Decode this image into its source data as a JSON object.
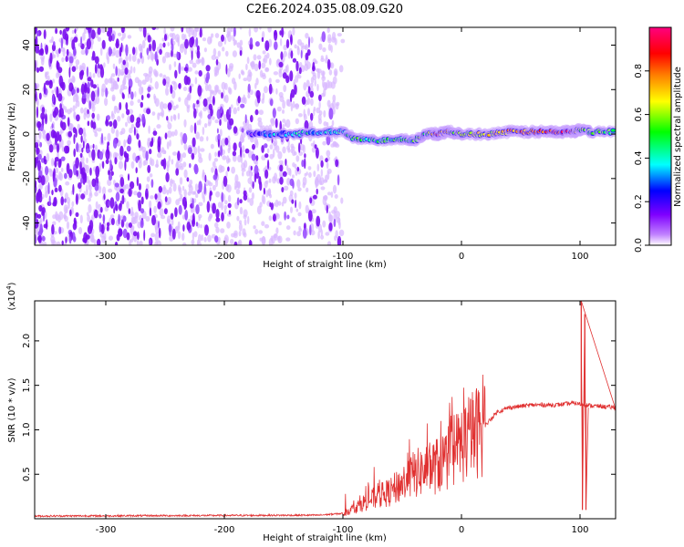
{
  "title": "C2E6.2024.035.08.09.G20",
  "chart_data": [
    {
      "type": "heatmap",
      "xlabel": "Height of straight line (km)",
      "ylabel": "Frequency (Hz)",
      "xlim": [
        -360,
        130
      ],
      "ylim": [
        -50,
        48
      ],
      "x_ticks": [
        -300,
        -200,
        -100,
        0,
        100
      ],
      "y_ticks": [
        -40,
        -20,
        0,
        20,
        40
      ],
      "colorbar": {
        "label": "Normalized spectral amplitude",
        "range": [
          0,
          1
        ],
        "ticks": [
          0.0,
          0.2,
          0.4,
          0.6,
          0.8
        ],
        "colors": [
          "#ffffff",
          "#7f00ff",
          "#0000ff",
          "#00ffff",
          "#00ff00",
          "#ffff00",
          "#ff7f00",
          "#ff0000",
          "#ff0080"
        ]
      },
      "noise_region_x": [
        -360,
        -100
      ],
      "ridge": [
        {
          "x": -180,
          "y": 0,
          "amp": 0.15
        },
        {
          "x": -160,
          "y": 0,
          "amp": 0.3
        },
        {
          "x": -140,
          "y": 0,
          "amp": 0.35
        },
        {
          "x": -120,
          "y": 1,
          "amp": 0.4
        },
        {
          "x": -100,
          "y": 1,
          "amp": 0.45
        },
        {
          "x": -90,
          "y": -2,
          "amp": 0.5
        },
        {
          "x": -70,
          "y": -3,
          "amp": 0.45
        },
        {
          "x": -50,
          "y": -2,
          "amp": 0.5
        },
        {
          "x": -40,
          "y": -3,
          "amp": 0.5
        },
        {
          "x": -30,
          "y": 0,
          "amp": 0.55
        },
        {
          "x": -20,
          "y": 0,
          "amp": 0.85
        },
        {
          "x": -10,
          "y": 1,
          "amp": 0.7
        },
        {
          "x": 0,
          "y": 0,
          "amp": 0.6
        },
        {
          "x": 20,
          "y": 0,
          "amp": 0.65
        },
        {
          "x": 40,
          "y": 1,
          "amp": 0.75
        },
        {
          "x": 60,
          "y": 1,
          "amp": 0.8
        },
        {
          "x": 80,
          "y": 1,
          "amp": 0.9
        },
        {
          "x": 95,
          "y": 1,
          "amp": 0.85
        },
        {
          "x": 100,
          "y": 2,
          "amp": 0.6
        },
        {
          "x": 110,
          "y": 1,
          "amp": 0.5
        },
        {
          "x": 130,
          "y": 1,
          "amp": 0.5
        }
      ],
      "grid": false
    },
    {
      "type": "line",
      "xlabel": "Height of straight line (km)",
      "ylabel": "SNR (10 * v/v)",
      "yscale_label": "(x10",
      "yscale_exp": "4",
      "yscale_close": ")",
      "xlim": [
        -360,
        130
      ],
      "ylim": [
        0,
        2.45
      ],
      "x_ticks": [
        -300,
        -200,
        -100,
        0,
        100
      ],
      "y_ticks": [
        0.5,
        1.0,
        1.5,
        2.0
      ],
      "color": "#e03030",
      "series_profile": [
        {
          "x": -360,
          "y": 0.03
        },
        {
          "x": -120,
          "y": 0.04
        },
        {
          "x": -100,
          "y": 0.06
        },
        {
          "x": -90,
          "y": 0.12
        },
        {
          "x": -80,
          "y": 0.2
        },
        {
          "x": -70,
          "y": 0.25
        },
        {
          "x": -60,
          "y": 0.3
        },
        {
          "x": -50,
          "y": 0.4
        },
        {
          "x": -40,
          "y": 0.5
        },
        {
          "x": -30,
          "y": 0.55
        },
        {
          "x": -20,
          "y": 0.6
        },
        {
          "x": -10,
          "y": 0.7
        },
        {
          "x": 0,
          "y": 0.85
        },
        {
          "x": 10,
          "y": 0.95
        },
        {
          "x": 20,
          "y": 1.05
        },
        {
          "x": 30,
          "y": 1.2
        },
        {
          "x": 40,
          "y": 1.25
        },
        {
          "x": 60,
          "y": 1.28
        },
        {
          "x": 80,
          "y": 1.28
        },
        {
          "x": 95,
          "y": 1.3
        },
        {
          "x": 110,
          "y": 1.27
        },
        {
          "x": 130,
          "y": 1.25
        }
      ],
      "spikes": [
        {
          "x": 101,
          "y": 2.45
        },
        {
          "x": 102,
          "y": 0.1
        },
        {
          "x": 104,
          "y": 2.3
        },
        {
          "x": 105,
          "y": 0.1
        }
      ],
      "grid": false
    }
  ]
}
